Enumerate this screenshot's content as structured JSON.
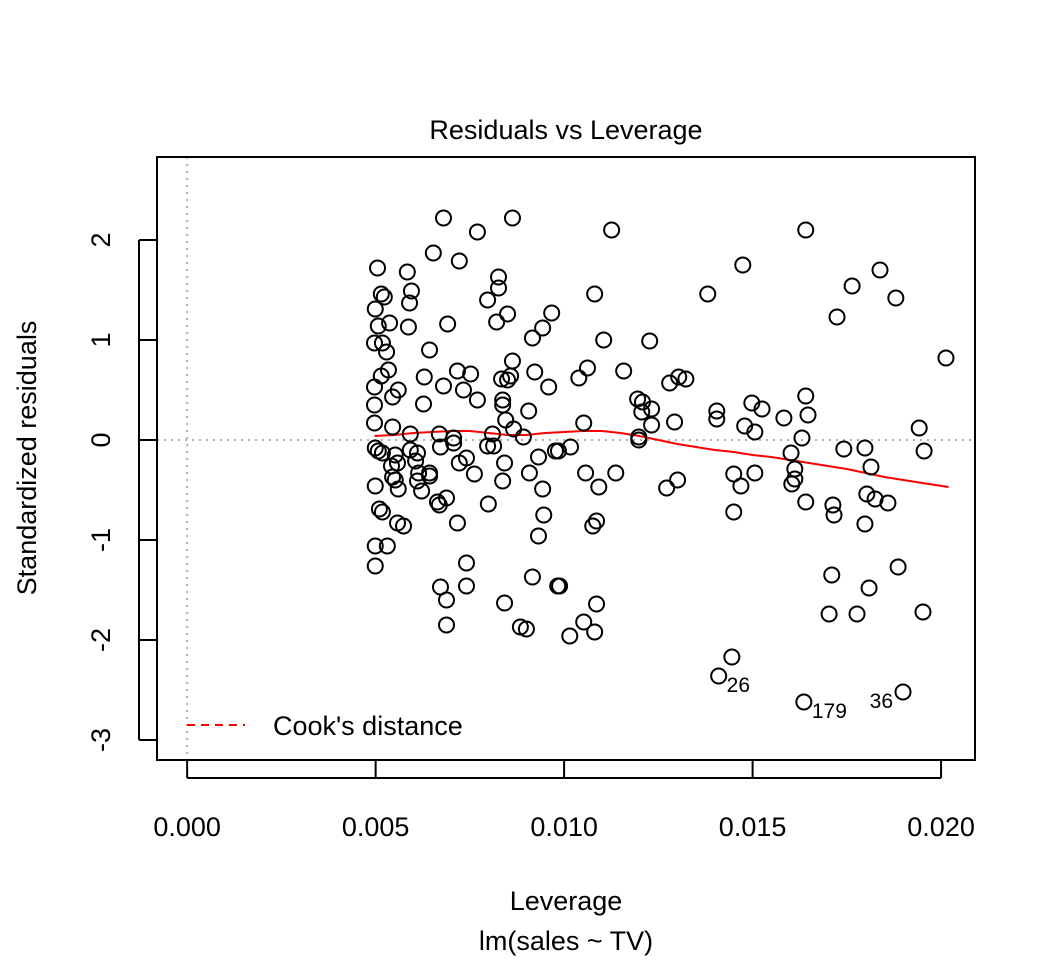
{
  "chart_data": {
    "type": "scatter",
    "title": "Residuals vs Leverage",
    "xlabel": "Leverage",
    "subtitle": "lm(sales ~ TV)",
    "ylabel": "Standardized residuals",
    "xlim": [
      -0.0008,
      0.0209
    ],
    "ylim": [
      -3.2,
      2.83
    ],
    "xticks": [
      0.0,
      0.005,
      0.01,
      0.015,
      0.02
    ],
    "xtick_labels": [
      "0.000",
      "0.005",
      "0.010",
      "0.015",
      "0.020"
    ],
    "yticks": [
      -3,
      -2,
      -1,
      0,
      1,
      2
    ],
    "ytick_labels": [
      "-3",
      "-2",
      "-1",
      "0",
      "1",
      "2"
    ],
    "grid": false,
    "reference_lines": {
      "h": 0,
      "v": 0
    },
    "legend": {
      "position": "bottom-left",
      "entries": [
        {
          "label": "Cook's distance",
          "color": "#ff0000",
          "style": "dashed"
        }
      ]
    },
    "colors": {
      "points": "#000000",
      "smooth": "#ff0000",
      "reference": "#b0b0b0"
    },
    "points": [
      [
        0.0068,
        2.22
      ],
      [
        0.00863,
        2.22
      ],
      [
        0.0077,
        2.08
      ],
      [
        0.00653,
        1.87
      ],
      [
        0.00722,
        1.79
      ],
      [
        0.00505,
        1.72
      ],
      [
        0.00584,
        1.68
      ],
      [
        0.00826,
        1.63
      ],
      [
        0.00826,
        1.52
      ],
      [
        0.00515,
        1.46
      ],
      [
        0.00523,
        1.43
      ],
      [
        0.00595,
        1.49
      ],
      [
        0.0059,
        1.37
      ],
      [
        0.00797,
        1.4
      ],
      [
        0.00499,
        1.31
      ],
      [
        0.00967,
        1.27
      ],
      [
        0.0085,
        1.26
      ],
      [
        0.00821,
        1.18
      ],
      [
        0.00537,
        1.17
      ],
      [
        0.00507,
        1.14
      ],
      [
        0.00587,
        1.13
      ],
      [
        0.00691,
        1.16
      ],
      [
        0.00943,
        1.12
      ],
      [
        0.00916,
        1.02
      ],
      [
        0.00497,
        0.97
      ],
      [
        0.00518,
        0.97
      ],
      [
        0.00529,
        0.88
      ],
      [
        0.00643,
        0.9
      ],
      [
        0.00863,
        0.79
      ],
      [
        0.00534,
        0.7
      ],
      [
        0.00515,
        0.64
      ],
      [
        0.00629,
        0.63
      ],
      [
        0.00717,
        0.69
      ],
      [
        0.00752,
        0.66
      ],
      [
        0.00834,
        0.61
      ],
      [
        0.00858,
        0.64
      ],
      [
        0.0085,
        0.6
      ],
      [
        0.00922,
        0.68
      ],
      [
        0.00959,
        0.53
      ],
      [
        0.00497,
        0.53
      ],
      [
        0.0056,
        0.5
      ],
      [
        0.00545,
        0.43
      ],
      [
        0.0068,
        0.54
      ],
      [
        0.00733,
        0.5
      ],
      [
        0.0077,
        0.4
      ],
      [
        0.00837,
        0.4
      ],
      [
        0.00837,
        0.35
      ],
      [
        0.00627,
        0.36
      ],
      [
        0.00906,
        0.29
      ],
      [
        0.00497,
        0.35
      ],
      [
        0.00497,
        0.17
      ],
      [
        0.00545,
        0.13
      ],
      [
        0.00845,
        0.2
      ],
      [
        0.00866,
        0.11
      ],
      [
        0.00592,
        0.06
      ],
      [
        0.00669,
        0.06
      ],
      [
        0.00707,
        0.02
      ],
      [
        0.0081,
        0.06
      ],
      [
        0.00892,
        0.03
      ],
      [
        0.00499,
        -0.08
      ],
      [
        0.00507,
        -0.11
      ],
      [
        0.00518,
        -0.13
      ],
      [
        0.00552,
        -0.15
      ],
      [
        0.00592,
        -0.1
      ],
      [
        0.00611,
        -0.13
      ],
      [
        0.00558,
        -0.23
      ],
      [
        0.00542,
        -0.26
      ],
      [
        0.00606,
        -0.21
      ],
      [
        0.00672,
        -0.07
      ],
      [
        0.00707,
        -0.03
      ],
      [
        0.00797,
        -0.06
      ],
      [
        0.00813,
        -0.06
      ],
      [
        0.00977,
        -0.11
      ],
      [
        0.00932,
        -0.17
      ],
      [
        0.00741,
        -0.18
      ],
      [
        0.00722,
        -0.23
      ],
      [
        0.00842,
        -0.23
      ],
      [
        0.00908,
        -0.33
      ],
      [
        0.00762,
        -0.34
      ],
      [
        0.00837,
        -0.41
      ],
      [
        0.00614,
        -0.33
      ],
      [
        0.00643,
        -0.33
      ],
      [
        0.00643,
        -0.36
      ],
      [
        0.00611,
        -0.41
      ],
      [
        0.00545,
        -0.37
      ],
      [
        0.00552,
        -0.4
      ],
      [
        0.00499,
        -0.46
      ],
      [
        0.0056,
        -0.49
      ],
      [
        0.00622,
        -0.51
      ],
      [
        0.00943,
        -0.49
      ],
      [
        0.00688,
        -0.58
      ],
      [
        0.00664,
        -0.62
      ],
      [
        0.00669,
        -0.65
      ],
      [
        0.00799,
        -0.64
      ],
      [
        0.0051,
        -0.69
      ],
      [
        0.00518,
        -0.72
      ],
      [
        0.00946,
        -0.75
      ],
      [
        0.00558,
        -0.83
      ],
      [
        0.00574,
        -0.86
      ],
      [
        0.00717,
        -0.83
      ],
      [
        0.00932,
        -0.96
      ],
      [
        0.00499,
        -1.06
      ],
      [
        0.00531,
        -1.06
      ],
      [
        0.00499,
        -1.26
      ],
      [
        0.00741,
        -1.23
      ],
      [
        0.00672,
        -1.47
      ],
      [
        0.00741,
        -1.46
      ],
      [
        0.00916,
        -1.37
      ],
      [
        0.00983,
        -1.46
      ],
      [
        0.00688,
        -1.6
      ],
      [
        0.00842,
        -1.63
      ],
      [
        0.00688,
        -1.85
      ],
      [
        0.00884,
        -1.87
      ],
      [
        0.009,
        -1.89
      ],
      [
        0.01126,
        2.1
      ],
      [
        0.01474,
        1.75
      ],
      [
        0.01081,
        1.46
      ],
      [
        0.01381,
        1.46
      ],
      [
        0.01105,
        1.0
      ],
      [
        0.01227,
        0.99
      ],
      [
        0.01062,
        0.72
      ],
      [
        0.01039,
        0.62
      ],
      [
        0.01158,
        0.69
      ],
      [
        0.0128,
        0.57
      ],
      [
        0.01304,
        0.63
      ],
      [
        0.01323,
        0.61
      ],
      [
        0.01195,
        0.41
      ],
      [
        0.01208,
        0.38
      ],
      [
        0.01232,
        0.31
      ],
      [
        0.01206,
        0.28
      ],
      [
        0.01405,
        0.29
      ],
      [
        0.01405,
        0.21
      ],
      [
        0.01498,
        0.37
      ],
      [
        0.01525,
        0.31
      ],
      [
        0.01052,
        0.17
      ],
      [
        0.01232,
        0.15
      ],
      [
        0.01293,
        0.18
      ],
      [
        0.01479,
        0.14
      ],
      [
        0.01506,
        0.08
      ],
      [
        0.01198,
        0.03
      ],
      [
        0.00985,
        -0.11
      ],
      [
        0.01017,
        -0.07
      ],
      [
        0.01198,
        0.0
      ],
      [
        0.01057,
        -0.33
      ],
      [
        0.01137,
        -0.33
      ],
      [
        0.01092,
        -0.47
      ],
      [
        0.01272,
        -0.48
      ],
      [
        0.01301,
        -0.4
      ],
      [
        0.0145,
        -0.34
      ],
      [
        0.01469,
        -0.46
      ],
      [
        0.01506,
        -0.33
      ],
      [
        0.0145,
        -0.72
      ],
      [
        0.01086,
        -0.81
      ],
      [
        0.01076,
        -0.86
      ],
      [
        0.00988,
        -1.46
      ],
      [
        0.01086,
        -1.64
      ],
      [
        0.01052,
        -1.82
      ],
      [
        0.01081,
        -1.92
      ],
      [
        0.01015,
        -1.96
      ],
      [
        0.01445,
        -2.17
      ],
      [
        0.0141,
        -2.36
      ],
      [
        0.01641,
        2.1
      ],
      [
        0.01838,
        1.7
      ],
      [
        0.01764,
        1.54
      ],
      [
        0.0188,
        1.42
      ],
      [
        0.01724,
        1.23
      ],
      [
        0.02013,
        0.82
      ],
      [
        0.01641,
        0.44
      ],
      [
        0.01647,
        0.25
      ],
      [
        0.01583,
        0.22
      ],
      [
        0.01631,
        0.02
      ],
      [
        0.01602,
        -0.13
      ],
      [
        0.01742,
        -0.09
      ],
      [
        0.01798,
        -0.08
      ],
      [
        0.01942,
        0.12
      ],
      [
        0.01955,
        -0.11
      ],
      [
        0.01814,
        -0.27
      ],
      [
        0.01612,
        -0.29
      ],
      [
        0.01612,
        -0.39
      ],
      [
        0.01604,
        -0.44
      ],
      [
        0.01641,
        -0.62
      ],
      [
        0.01713,
        -0.65
      ],
      [
        0.01716,
        -0.75
      ],
      [
        0.01803,
        -0.54
      ],
      [
        0.01825,
        -0.59
      ],
      [
        0.01859,
        -0.63
      ],
      [
        0.01798,
        -0.84
      ],
      [
        0.01886,
        -1.27
      ],
      [
        0.0171,
        -1.35
      ],
      [
        0.01809,
        -1.48
      ],
      [
        0.01703,
        -1.74
      ],
      [
        0.01777,
        -1.74
      ],
      [
        0.01952,
        -1.72
      ],
      [
        0.01636,
        -2.62
      ],
      [
        0.01899,
        -2.52
      ]
    ],
    "point_labels": [
      {
        "text": "26",
        "point": [
          0.0141,
          -2.36
        ],
        "side": "right"
      },
      {
        "text": "179",
        "point": [
          0.01636,
          -2.62
        ],
        "side": "right"
      },
      {
        "text": "36",
        "point": [
          0.01899,
          -2.52
        ],
        "side": "left"
      }
    ],
    "smooth": [
      [
        0.00497,
        0.04
      ],
      [
        0.0055,
        0.05
      ],
      [
        0.006,
        0.07
      ],
      [
        0.0065,
        0.08
      ],
      [
        0.007,
        0.09
      ],
      [
        0.0075,
        0.09
      ],
      [
        0.008,
        0.07
      ],
      [
        0.0085,
        0.05
      ],
      [
        0.009,
        0.05
      ],
      [
        0.0095,
        0.07
      ],
      [
        0.01,
        0.08
      ],
      [
        0.0105,
        0.09
      ],
      [
        0.011,
        0.09
      ],
      [
        0.0115,
        0.07
      ],
      [
        0.012,
        0.04
      ],
      [
        0.0125,
        0.0
      ],
      [
        0.013,
        -0.04
      ],
      [
        0.0135,
        -0.07
      ],
      [
        0.014,
        -0.1
      ],
      [
        0.0145,
        -0.12
      ],
      [
        0.015,
        -0.15
      ],
      [
        0.0155,
        -0.17
      ],
      [
        0.016,
        -0.2
      ],
      [
        0.0165,
        -0.23
      ],
      [
        0.017,
        -0.26
      ],
      [
        0.0175,
        -0.29
      ],
      [
        0.018,
        -0.33
      ],
      [
        0.0185,
        -0.37
      ],
      [
        0.019,
        -0.4
      ],
      [
        0.0195,
        -0.43
      ],
      [
        0.0202,
        -0.47
      ]
    ]
  }
}
